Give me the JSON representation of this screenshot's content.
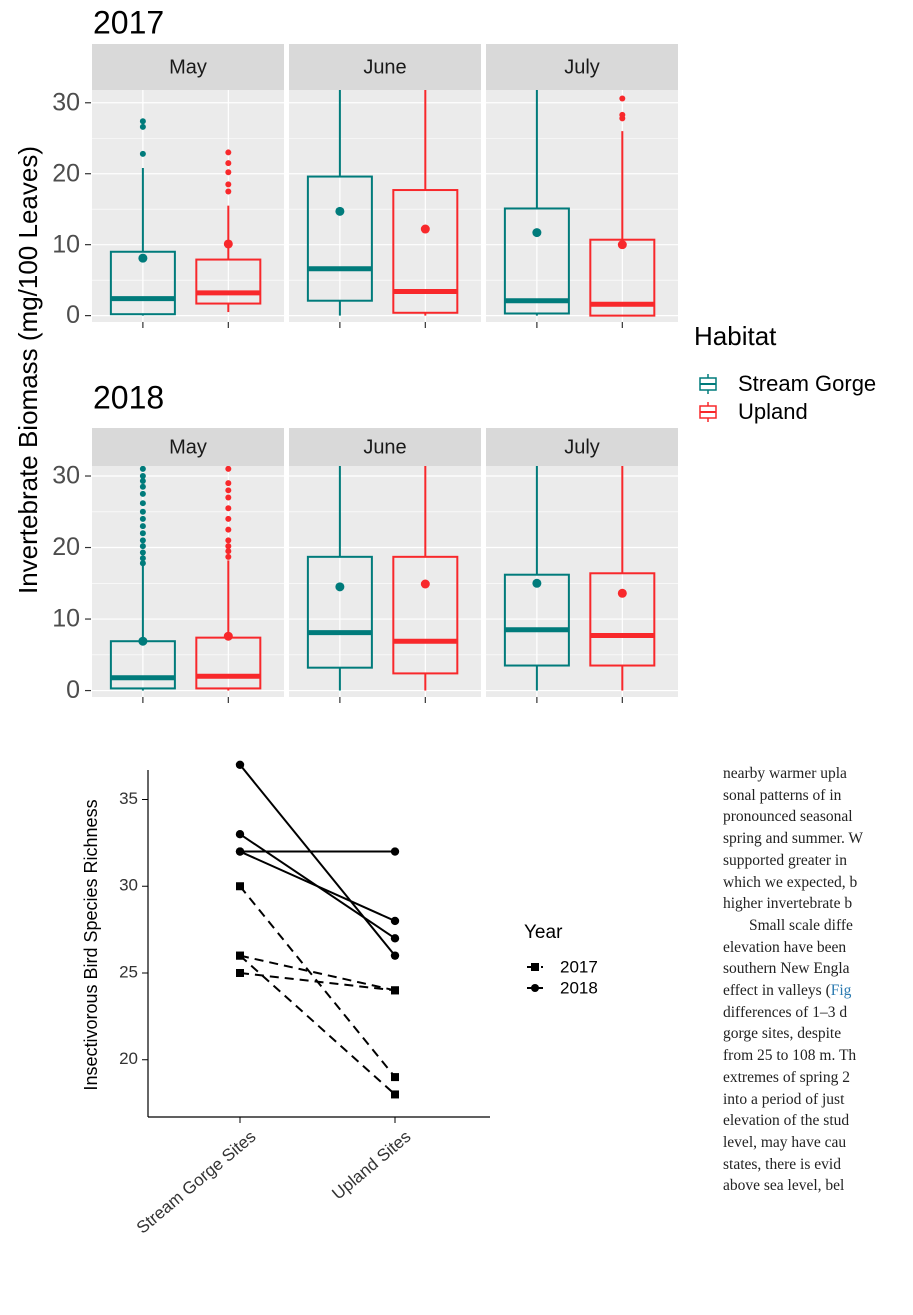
{
  "chart_data": [
    {
      "type": "box",
      "ylabel": "Invertebrate Biomass (mg/100 Leaves)",
      "legend_title": "Habitat",
      "series": [
        {
          "name": "Stream Gorge",
          "color": "#007b7b"
        },
        {
          "name": "Upland",
          "color": "#f8282b"
        }
      ],
      "facets": [
        {
          "title": "2017",
          "ylim": [
            -0.9,
            31.8
          ],
          "yticks": [
            0,
            10,
            20,
            30
          ],
          "yminorticks": [
            5,
            15,
            25
          ],
          "panels": [
            {
              "label": "May",
              "boxes": [
                {
                  "low": 0,
                  "q1": 0.2,
                  "median": 2.4,
                  "q3": 9.0,
                  "high": 20.8,
                  "mean": 8.1,
                  "outliers": [
                    22.8,
                    26.6,
                    27.4
                  ]
                },
                {
                  "low": 0.5,
                  "q1": 1.7,
                  "median": 3.2,
                  "q3": 7.9,
                  "high": 15.5,
                  "mean": 10.1,
                  "outliers": [
                    17.5,
                    18.5,
                    20.2,
                    21.5,
                    23.0
                  ]
                }
              ]
            },
            {
              "label": "June",
              "boxes": [
                {
                  "low": 0,
                  "q1": 2.1,
                  "median": 6.6,
                  "q3": 19.6,
                  "high": 33,
                  "mean": 14.7,
                  "outliers": []
                },
                {
                  "low": 0,
                  "q1": 0.4,
                  "median": 3.4,
                  "q3": 17.7,
                  "high": 33,
                  "mean": 12.2,
                  "outliers": []
                }
              ]
            },
            {
              "label": "July",
              "boxes": [
                {
                  "low": 0,
                  "q1": 0.3,
                  "median": 2.1,
                  "q3": 15.1,
                  "high": 33,
                  "mean": 11.7,
                  "outliers": []
                },
                {
                  "low": 0,
                  "q1": 0,
                  "median": 1.6,
                  "q3": 10.7,
                  "high": 26.0,
                  "mean": 10.0,
                  "outliers": [
                    27.8,
                    28.3,
                    30.6
                  ]
                }
              ]
            }
          ]
        },
        {
          "title": "2018",
          "ylim": [
            -0.9,
            31.4
          ],
          "yticks": [
            0,
            10,
            20,
            30
          ],
          "yminorticks": [
            5,
            15,
            25
          ],
          "panels": [
            {
              "label": "May",
              "boxes": [
                {
                  "low": 0,
                  "q1": 0.3,
                  "median": 1.8,
                  "q3": 6.9,
                  "high": 17.5,
                  "mean": 6.9,
                  "outliers": [
                    17.8,
                    18.5,
                    19.3,
                    20.2,
                    21.0,
                    22.0,
                    23.0,
                    24.0,
                    25.0,
                    26.2,
                    27.5,
                    28.5,
                    29.3,
                    30.0,
                    31.0
                  ]
                },
                {
                  "low": 0,
                  "q1": 0.3,
                  "median": 2.0,
                  "q3": 7.4,
                  "high": 18.2,
                  "mean": 7.6,
                  "outliers": [
                    18.7,
                    19.5,
                    20.2,
                    21.0,
                    22.5,
                    24.0,
                    25.5,
                    27.0,
                    28.0,
                    29.0,
                    31.0
                  ]
                }
              ]
            },
            {
              "label": "June",
              "boxes": [
                {
                  "low": 0,
                  "q1": 3.2,
                  "median": 8.1,
                  "q3": 18.7,
                  "high": 33,
                  "mean": 14.5,
                  "outliers": []
                },
                {
                  "low": 0,
                  "q1": 2.4,
                  "median": 6.9,
                  "q3": 18.7,
                  "high": 33,
                  "mean": 14.9,
                  "outliers": []
                }
              ]
            },
            {
              "label": "July",
              "boxes": [
                {
                  "low": 0,
                  "q1": 3.5,
                  "median": 8.5,
                  "q3": 16.2,
                  "high": 33,
                  "mean": 15.0,
                  "outliers": []
                },
                {
                  "low": 0,
                  "q1": 3.5,
                  "median": 7.7,
                  "q3": 16.4,
                  "high": 33,
                  "mean": 13.6,
                  "outliers": []
                }
              ]
            }
          ]
        }
      ]
    },
    {
      "type": "line",
      "ylabel": "Insectivorous Bird Species Richness",
      "categories": [
        "Stream Gorge Sites",
        "Upland Sites"
      ],
      "ylim": [
        16.7,
        36.7
      ],
      "yticks": [
        20,
        25,
        30,
        35
      ],
      "legend_title": "Year",
      "series": [
        {
          "name": "2017",
          "color": "#000000",
          "dash": true,
          "marker": "square",
          "lines": [
            [
              30,
              19
            ],
            [
              26,
              24
            ],
            [
              25,
              24
            ],
            [
              26,
              18
            ]
          ]
        },
        {
          "name": "2018",
          "color": "#000000",
          "dash": false,
          "marker": "circle",
          "lines": [
            [
              37,
              26
            ],
            [
              33,
              27
            ],
            [
              32,
              32
            ],
            [
              32,
              28
            ]
          ]
        }
      ]
    }
  ],
  "text": {
    "lines": [
      "nearby warmer upla",
      "sonal patterns of in",
      "pronounced seasonal",
      "spring and summer. W",
      "supported greater in",
      "which we expected, b",
      "higher invertebrate b",
      "Small scale diffe",
      "elevation have been",
      "southern New Engla",
      {
        "text": "effect in valleys (",
        "link": "Fig"
      },
      "differences of 1–3 d",
      "gorge sites, despite",
      "from 25 to 108 m. Th",
      "extremes of spring 2",
      "into a period of just",
      "elevation of the stud",
      "level, may have cau",
      "states, there is evid",
      "above sea level, bel"
    ]
  }
}
